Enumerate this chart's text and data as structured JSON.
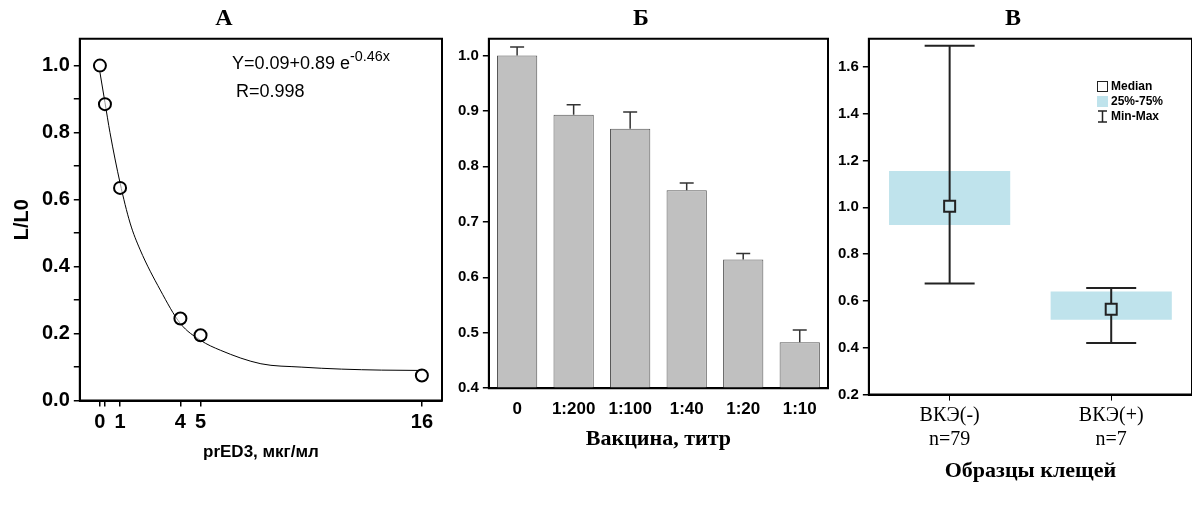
{
  "chart_data": [
    {
      "type": "scatter",
      "title": "А",
      "xlabel": "prED3, мкг/мл",
      "ylabel": "L/L0",
      "grid": false,
      "xlim": [
        -1,
        17
      ],
      "xticks": [
        0,
        {
          "value": 0.25,
          "label": null
        },
        1,
        4,
        5,
        16
      ],
      "ylim": [
        0,
        1.08
      ],
      "yticks": [
        {
          "value": 0,
          "label": "0.0"
        },
        {
          "value": 0.1,
          "label": null
        },
        0.2,
        {
          "value": 0.3,
          "label": null
        },
        0.4,
        {
          "value": 0.5,
          "label": null
        },
        0.6,
        {
          "value": 0.7,
          "label": null
        },
        0.8,
        {
          "value": 0.9,
          "label": null
        },
        {
          "value": 1,
          "label": "1.0"
        }
      ],
      "annotations": [
        "Y=0.09+0.89 e$^{-0.46x}$",
        "R=0.998"
      ],
      "series": [
        {
          "type": "scatter",
          "color": "#000000",
          "marker": "circle",
          "x": [
            0,
            0.25,
            1,
            4,
            5,
            16
          ],
          "values": [
            1.0,
            0.885,
            0.635,
            0.245,
            0.195,
            0.075
          ]
        },
        {
          "type": "line",
          "color": "#000000",
          "x": [
            0,
            0.25,
            0.5,
            1,
            1.5,
            2,
            3,
            4,
            5,
            6,
            8,
            10,
            12,
            14,
            16
          ],
          "values": [
            0.98,
            0.89,
            0.8,
            0.65,
            0.53,
            0.45,
            0.33,
            0.23,
            0.18,
            0.15,
            0.11,
            0.1,
            0.094,
            0.091,
            0.09
          ]
        }
      ]
    },
    {
      "type": "bar",
      "title": "Б",
      "xlabel": "Вакцина, титр",
      "grid": false,
      "color": "#c0c0c0",
      "categories": [
        "0",
        "1:200",
        "1:100",
        "1:40",
        "1:20",
        "1:10"
      ],
      "values": [
        1.0,
        0.893,
        0.868,
        0.757,
        0.632,
        0.483
      ],
      "errors": [
        [
          1.0,
          1.015
        ],
        [
          0.893,
          0.911
        ],
        [
          0.868,
          0.898
        ],
        [
          0.757,
          0.77
        ],
        [
          0.632,
          0.643
        ],
        [
          0.483,
          0.505
        ]
      ],
      "ylim": [
        0.4,
        1.03
      ],
      "yticks": [
        0.4,
        0.5,
        0.6,
        0.7,
        0.8,
        0.9,
        {
          "value": 1,
          "label": "1.0"
        }
      ]
    },
    {
      "type": "box",
      "title": "В",
      "xlabel": "Образцы клещей",
      "grid": false,
      "color": "#bfe3ec",
      "categories": [
        "ВКЭ(-)\nn=79",
        "ВКЭ(+)\nn=7"
      ],
      "boxes": [
        {
          "low": 0.675,
          "q1": 0.925,
          "median": 1.005,
          "q3": 1.155,
          "high": 1.69
        },
        {
          "low": 0.42,
          "q1": 0.52,
          "median": 0.565,
          "q3": 0.64,
          "high": 0.655
        }
      ],
      "ylim": [
        0.2,
        1.72
      ],
      "yticks": [
        0.2,
        0.4,
        0.6,
        0.8,
        {
          "value": 1,
          "label": "1.0"
        },
        1.2,
        1.4,
        1.6
      ],
      "annotations": [
        "Median",
        "25%-75%",
        "Min-Max"
      ]
    }
  ]
}
